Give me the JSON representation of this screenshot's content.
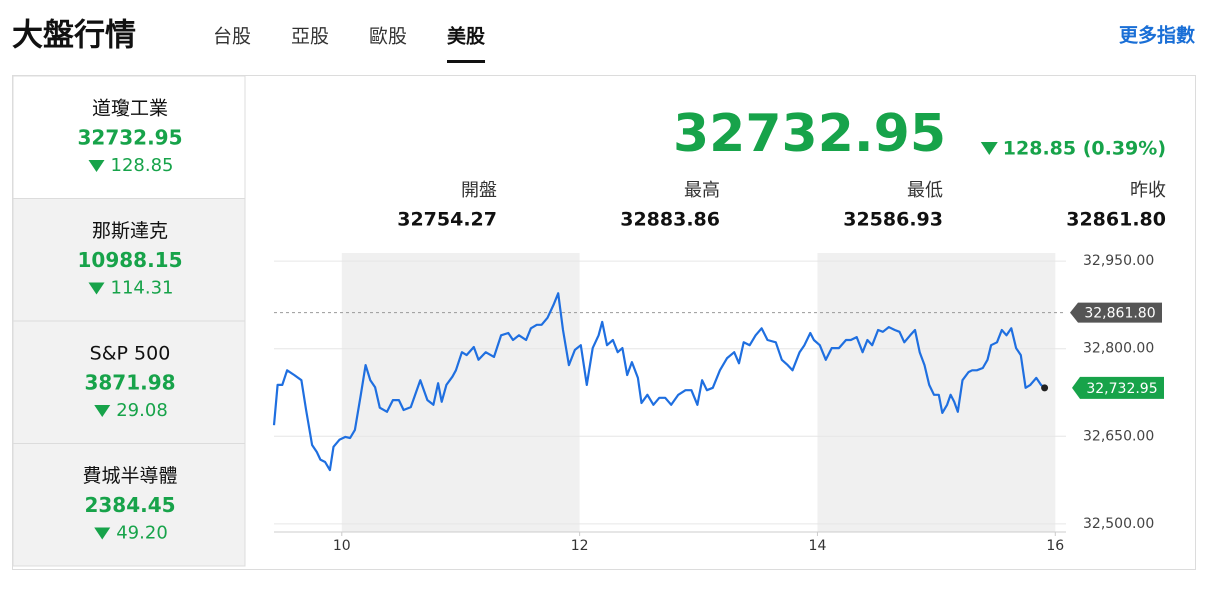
{
  "header": {
    "title": "大盤行情",
    "tabs": [
      "台股",
      "亞股",
      "歐股",
      "美股"
    ],
    "active_tab": 3,
    "more_link": "更多指數"
  },
  "sidebar": [
    {
      "name": "道瓊工業",
      "value": "32732.95",
      "change": "128.85"
    },
    {
      "name": "那斯達克",
      "value": "10988.15",
      "change": "114.31"
    },
    {
      "name": "S&P 500",
      "value": "3871.98",
      "change": "29.08"
    },
    {
      "name": "費城半導體",
      "value": "2384.45",
      "change": "49.20"
    }
  ],
  "quote": {
    "value": "32732.95",
    "change": "128.85 (0.39%)"
  },
  "stats": [
    {
      "label": "開盤",
      "value": "32754.27"
    },
    {
      "label": "最高",
      "value": "32883.86"
    },
    {
      "label": "最低",
      "value": "32586.93"
    },
    {
      "label": "昨收",
      "value": "32861.80"
    }
  ],
  "chart_data": {
    "type": "line",
    "color": "#1f6fe0",
    "x": [
      9.43,
      9.46,
      9.5,
      9.54,
      9.6,
      9.66,
      9.7,
      9.75,
      9.79,
      9.82,
      9.86,
      9.9,
      9.93,
      9.98,
      10.03,
      10.07,
      10.11,
      10.16,
      10.2,
      10.24,
      10.28,
      10.32,
      10.38,
      10.43,
      10.48,
      10.52,
      10.58,
      10.66,
      10.72,
      10.77,
      10.81,
      10.84,
      10.88,
      10.93,
      10.96,
      11.01,
      11.05,
      11.11,
      11.15,
      11.21,
      11.28,
      11.34,
      11.4,
      11.44,
      11.49,
      11.55,
      11.59,
      11.64,
      11.68,
      11.73,
      11.78,
      11.82,
      11.86,
      11.91,
      11.96,
      12.01,
      12.06,
      12.11,
      12.16,
      12.19,
      12.23,
      12.28,
      12.32,
      12.36,
      12.4,
      12.44,
      12.49,
      12.52,
      12.57,
      12.62,
      12.67,
      12.72,
      12.77,
      12.83,
      12.89,
      12.94,
      12.99,
      13.03,
      13.07,
      13.12,
      13.18,
      13.24,
      13.3,
      13.34,
      13.38,
      13.43,
      13.48,
      13.53,
      13.58,
      13.65,
      13.7,
      13.75,
      13.79,
      13.85,
      13.89,
      13.94,
      13.97,
      14.02,
      14.07,
      14.12,
      14.18,
      14.24,
      14.28,
      14.33,
      14.38,
      14.42,
      14.46,
      14.51,
      14.55,
      14.6,
      14.65,
      14.69,
      14.73,
      14.78,
      14.82,
      14.86,
      14.9,
      14.94,
      14.98,
      15.02,
      15.05,
      15.09,
      15.12,
      15.15,
      15.18,
      15.22,
      15.27,
      15.3,
      15.34,
      15.39,
      15.43,
      15.46,
      15.51,
      15.55,
      15.59,
      15.63,
      15.67,
      15.71,
      15.75,
      15.79,
      15.84,
      15.88,
      15.91
    ],
    "values": [
      32669,
      32738,
      32738,
      32763,
      32755,
      32746,
      32695,
      32635,
      32623,
      32610,
      32606,
      32592,
      32632,
      32644,
      32649,
      32647,
      32661,
      32721,
      32772,
      32746,
      32734,
      32699,
      32692,
      32712,
      32712,
      32695,
      32700,
      32746,
      32712,
      32704,
      32741,
      32709,
      32738,
      32752,
      32763,
      32794,
      32789,
      32803,
      32781,
      32794,
      32786,
      32823,
      32827,
      32815,
      32823,
      32815,
      32835,
      32841,
      32841,
      32853,
      32875,
      32895,
      32832,
      32772,
      32798,
      32806,
      32738,
      32801,
      32823,
      32846,
      32806,
      32815,
      32794,
      32801,
      32755,
      32777,
      32750,
      32707,
      32721,
      32704,
      32716,
      32716,
      32704,
      32721,
      32729,
      32729,
      32704,
      32746,
      32729,
      32733,
      32763,
      32784,
      32794,
      32775,
      32811,
      32806,
      32823,
      32835,
      32815,
      32811,
      32781,
      32772,
      32763,
      32794,
      32806,
      32827,
      32815,
      32806,
      32781,
      32801,
      32801,
      32815,
      32815,
      32820,
      32794,
      32815,
      32806,
      32832,
      32829,
      32837,
      32832,
      32829,
      32811,
      32823,
      32832,
      32794,
      32772,
      32738,
      32721,
      32721,
      32690,
      32704,
      32721,
      32709,
      32692,
      32746,
      32760,
      32763,
      32763,
      32767,
      32781,
      32806,
      32811,
      32832,
      32823,
      32835,
      32801,
      32789,
      32733,
      32738,
      32750,
      32738,
      32732.95
    ],
    "xlim": [
      9.43,
      16.09
    ],
    "xticks": [
      10,
      12,
      14,
      16
    ],
    "ylim": [
      32486,
      32964
    ],
    "yticks": [
      {
        "value": 32500,
        "label": "32,500.00"
      },
      {
        "value": 32650,
        "label": "32,650.00"
      },
      {
        "value": 32800,
        "label": "32,800.00"
      },
      {
        "value": 32950,
        "label": "32,950.00"
      }
    ],
    "ref_line": {
      "value": 32861.8,
      "label": "32,861.80"
    },
    "last_label": {
      "value": 32732.95,
      "label": "32,732.95"
    },
    "grid": true
  }
}
